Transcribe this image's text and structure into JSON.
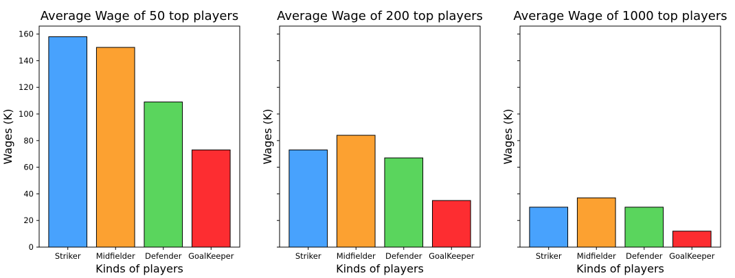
{
  "chart_data": [
    {
      "type": "bar",
      "title": "Average Wage of 50 top players",
      "xlabel": "Kinds of players",
      "ylabel": "Wages (K)",
      "categories": [
        "Striker",
        "Midfielder",
        "Defender",
        "GoalKeeper"
      ],
      "values": [
        158,
        150,
        109,
        73
      ],
      "colors": [
        "#48a2fd",
        "#fca131",
        "#5ad55d",
        "#fd2d31"
      ],
      "ylim": [
        0,
        166
      ],
      "yticks": [
        0,
        20,
        40,
        60,
        80,
        100,
        120,
        140,
        160
      ],
      "show_ytick_labels": true,
      "grid": false
    },
    {
      "type": "bar",
      "title": "Average Wage of 200 top players",
      "xlabel": "Kinds of players",
      "ylabel": "Wages (K)",
      "categories": [
        "Striker",
        "Midfielder",
        "Defender",
        "GoalKeeper"
      ],
      "values": [
        73,
        84,
        67,
        35
      ],
      "colors": [
        "#48a2fd",
        "#fca131",
        "#5ad55d",
        "#fd2d31"
      ],
      "ylim": [
        0,
        166
      ],
      "yticks": [
        0,
        20,
        40,
        60,
        80,
        100,
        120,
        140,
        160
      ],
      "show_ytick_labels": false,
      "grid": false
    },
    {
      "type": "bar",
      "title": "Average Wage of 1000 top players",
      "xlabel": "Kinds of players",
      "ylabel": "Wages (K)",
      "categories": [
        "Striker",
        "Midfielder",
        "Defender",
        "GoalKeeper"
      ],
      "values": [
        30,
        37,
        30,
        12
      ],
      "colors": [
        "#48a2fd",
        "#fca131",
        "#5ad55d",
        "#fd2d31"
      ],
      "ylim": [
        0,
        166
      ],
      "yticks": [
        0,
        20,
        40,
        60,
        80,
        100,
        120,
        140,
        160
      ],
      "show_ytick_labels": false,
      "grid": false
    }
  ]
}
